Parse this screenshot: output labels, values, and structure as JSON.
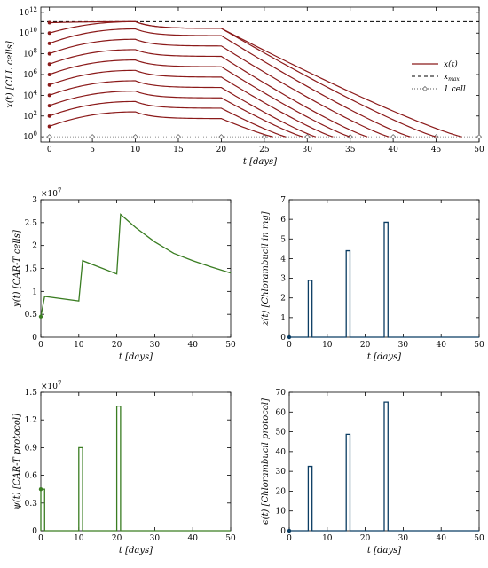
{
  "chart_data": [
    {
      "id": "x",
      "type": "line",
      "xlabel": "t [days]",
      "ylabel": "x(t) [CLL cells]",
      "xlim": [
        -1,
        50
      ],
      "ylim_log10": [
        -0.5,
        12.5
      ],
      "yscale": "log",
      "xticks": [
        "0",
        "5",
        "10",
        "15",
        "20",
        "25",
        "30",
        "35",
        "40",
        "45",
        "50"
      ],
      "yticks": [
        "10^0",
        "10^2",
        "10^4",
        "10^6",
        "10^8",
        "10^10",
        "10^12"
      ],
      "ytick_values_log10": [
        0,
        2,
        4,
        6,
        8,
        10,
        12
      ],
      "color": "#8b1a1a",
      "series_x0_log10": [
        1,
        2,
        3,
        4,
        5,
        6,
        7,
        8,
        9,
        10,
        11
      ],
      "series_end_day": [
        26,
        27.5,
        29.5,
        31,
        33,
        35,
        37,
        39.5,
        42,
        45,
        48
      ],
      "x_max_log10": 11.1,
      "legend": {
        "position": "right",
        "entries": [
          {
            "label": "x(t)",
            "style": "solid",
            "color": "#8b1a1a"
          },
          {
            "label": "x_max",
            "style": "dashed",
            "color": "#000000"
          },
          {
            "label": "1 cell",
            "style": "dotted-diamond",
            "color": "#555555"
          }
        ]
      },
      "one_cell_markers_t": [
        0,
        5,
        10,
        15,
        20,
        25,
        30,
        35,
        40,
        45,
        50
      ]
    },
    {
      "id": "y",
      "type": "line",
      "xlabel": "t [days]",
      "ylabel": "y(t) [CAR-T cells]",
      "xlim": [
        0,
        50
      ],
      "ylim": [
        0,
        3
      ],
      "exponent": "×10^7",
      "xticks": [
        "0",
        "10",
        "20",
        "30",
        "40",
        "50"
      ],
      "yticks": [
        "0",
        "0.5",
        "1",
        "1.5",
        "2",
        "2.5",
        "3"
      ],
      "color": "#3a7d22",
      "points": [
        [
          0,
          0.45
        ],
        [
          1,
          0.89
        ],
        [
          10,
          0.79
        ],
        [
          11,
          1.67
        ],
        [
          20,
          1.38
        ],
        [
          21,
          2.68
        ],
        [
          25,
          2.39
        ],
        [
          30,
          2.08
        ],
        [
          35,
          1.83
        ],
        [
          40,
          1.67
        ],
        [
          45,
          1.53
        ],
        [
          50,
          1.4
        ]
      ]
    },
    {
      "id": "z",
      "type": "line",
      "xlabel": "t [days]",
      "ylabel": "z(t) [Chlorambucil in mg]",
      "xlim": [
        0,
        50
      ],
      "ylim": [
        0,
        7
      ],
      "xticks": [
        "0",
        "10",
        "20",
        "30",
        "40",
        "50"
      ],
      "yticks": [
        "0",
        "1",
        "2",
        "3",
        "4",
        "5",
        "6",
        "7"
      ],
      "color": "#0b3d63",
      "pulses": [
        {
          "t": 5,
          "end": 6,
          "peak": 2.9
        },
        {
          "t": 15,
          "end": 16,
          "peak": 4.4
        },
        {
          "t": 25,
          "end": 26,
          "peak": 5.85
        }
      ]
    },
    {
      "id": "psi",
      "type": "line",
      "xlabel": "t [days]",
      "ylabel": "ψ(t) [CAR-T protocol]",
      "xlim": [
        0,
        50
      ],
      "ylim": [
        0,
        1.5
      ],
      "exponent": "×10^7",
      "xticks": [
        "0",
        "10",
        "20",
        "30",
        "40",
        "50"
      ],
      "yticks": [
        "0",
        "0.3",
        "0.6",
        "0.9",
        "1.2",
        "1.5"
      ],
      "color": "#3a7d22",
      "pulses": [
        {
          "t": 0,
          "end": 1,
          "peak": 0.45
        },
        {
          "t": 10,
          "end": 11,
          "peak": 0.9
        },
        {
          "t": 20,
          "end": 21,
          "peak": 1.35
        }
      ]
    },
    {
      "id": "eps",
      "type": "line",
      "xlabel": "t [days]",
      "ylabel": "ϵ(t) [Chlorambucil protocol]",
      "xlim": [
        0,
        50
      ],
      "ylim": [
        0,
        70
      ],
      "xticks": [
        "0",
        "10",
        "20",
        "30",
        "40",
        "50"
      ],
      "yticks": [
        "0",
        "10",
        "20",
        "30",
        "40",
        "50",
        "60",
        "70"
      ],
      "color": "#0b3d63",
      "pulses": [
        {
          "t": 5,
          "end": 6,
          "peak": 32.5
        },
        {
          "t": 15,
          "end": 16,
          "peak": 48.75
        },
        {
          "t": 25,
          "end": 26,
          "peak": 65
        }
      ]
    }
  ]
}
